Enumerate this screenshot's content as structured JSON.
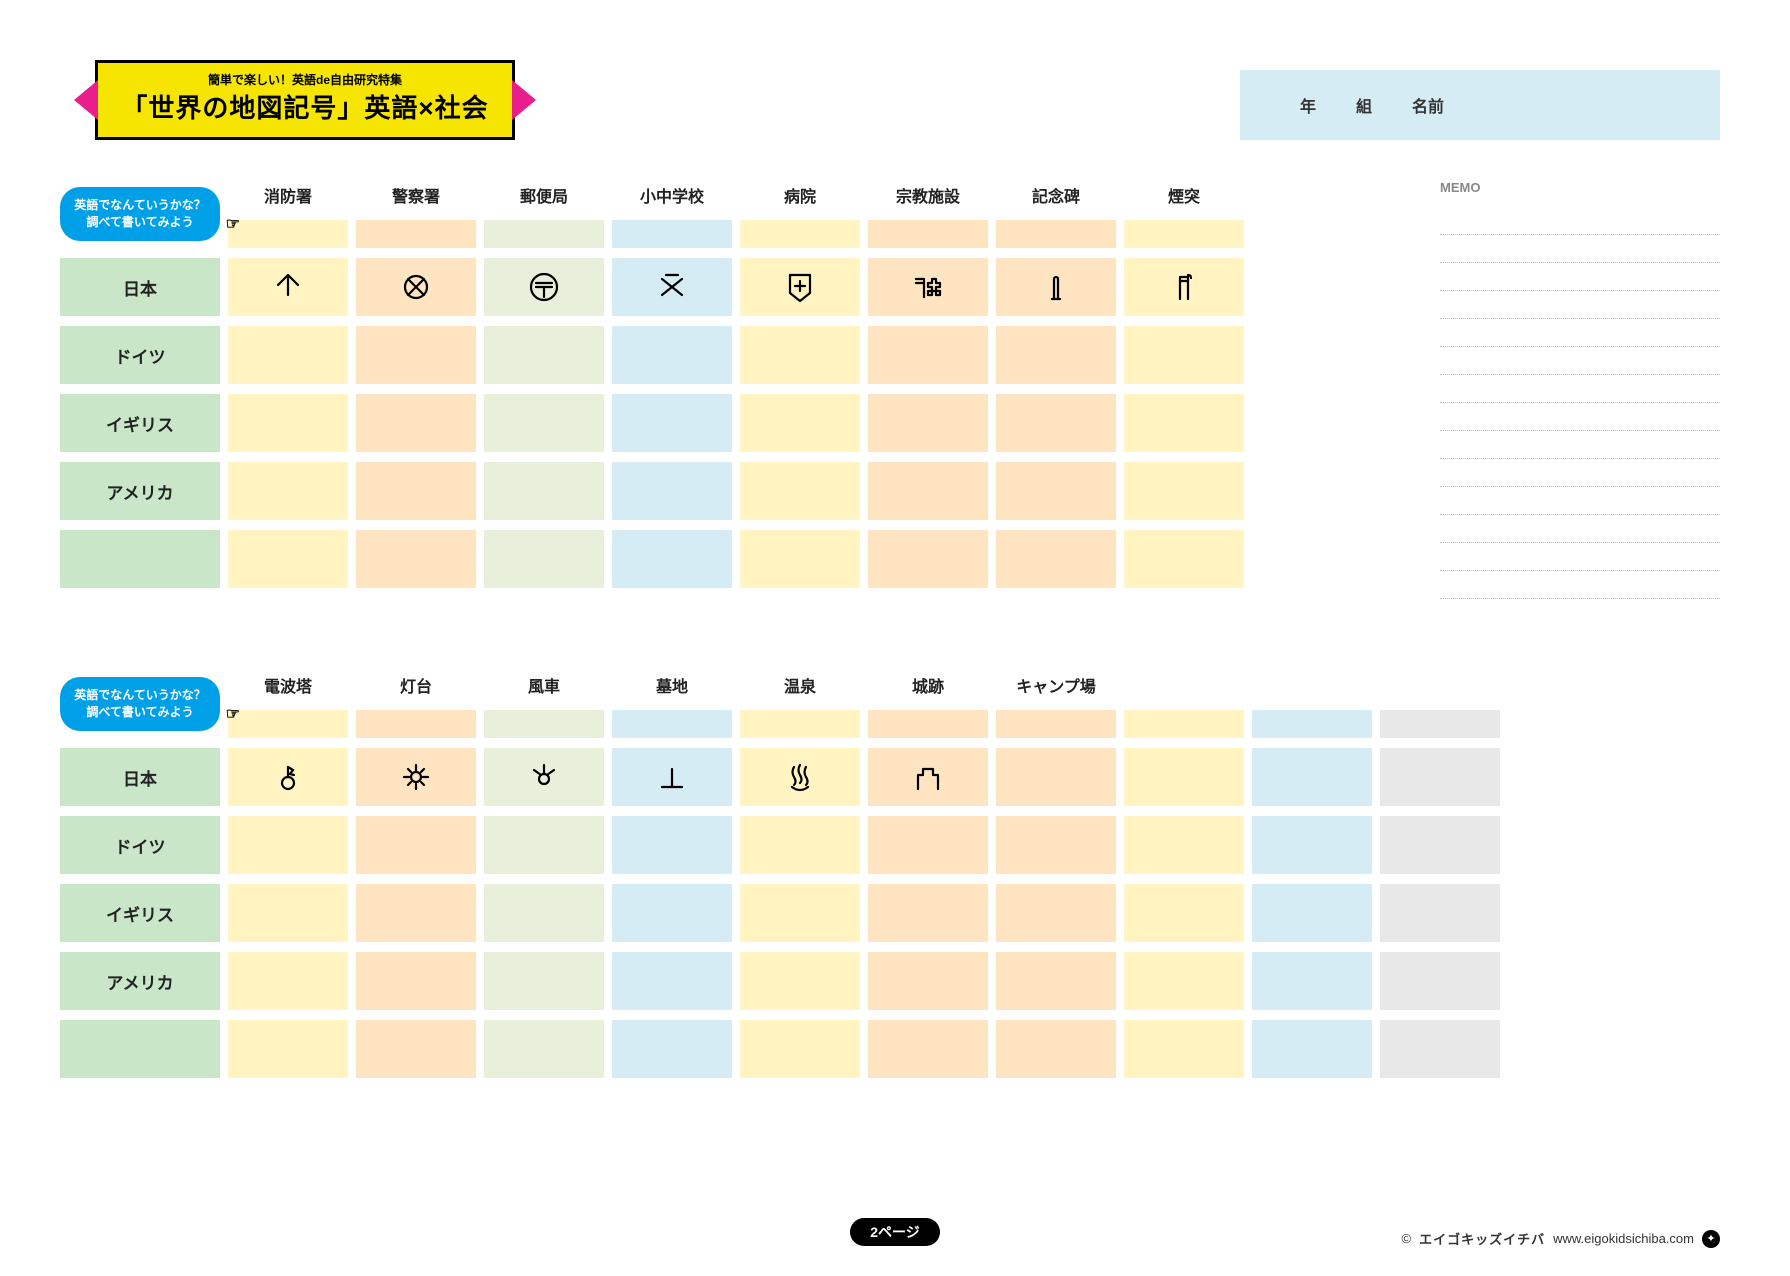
{
  "banner": {
    "subtitle": "簡単で楽しい！英語de自由研究特集",
    "title": "「世界の地図記号」英語×社会"
  },
  "name_box": {
    "year": "年",
    "class": "組",
    "name": "名前"
  },
  "cloud": {
    "line1": "英語でなんていうかな？",
    "line2": "調べて書いてみよう"
  },
  "memo_label": "MEMO",
  "memo_lines": 14,
  "table1": {
    "columns": [
      "消防署",
      "警察署",
      "郵便局",
      "小中学校",
      "病院",
      "宗教施設",
      "記念碑",
      "煙突"
    ],
    "row_labels": [
      "日本",
      "ドイツ",
      "イギリス",
      "アメリカ",
      ""
    ],
    "japan_symbols": [
      "fire",
      "police",
      "post",
      "school",
      "hospital",
      "religion",
      "monument",
      "chimney"
    ],
    "column_colors": {
      "rowlabel": "#c9e6c9",
      "cols": [
        "#fff4c2",
        "#ffe4c2",
        "#e8f0dc",
        "#d5ecf4",
        "#fff4c2",
        "#ffe4c2",
        "#ffe4c2",
        "#fff4c2"
      ]
    }
  },
  "table2": {
    "columns": [
      "電波塔",
      "灯台",
      "風車",
      "墓地",
      "温泉",
      "城跡",
      "キャンプ場",
      "",
      "",
      ""
    ],
    "row_labels": [
      "日本",
      "ドイツ",
      "イギリス",
      "アメリカ",
      ""
    ],
    "japan_symbols": [
      "radio",
      "lighthouse",
      "windmill",
      "grave",
      "onsen",
      "castle",
      "",
      "",
      "",
      ""
    ],
    "column_colors": {
      "rowlabel": "#c9e6c9",
      "cols": [
        "#fff4c2",
        "#ffe4c2",
        "#e8f0dc",
        "#d5ecf4",
        "#fff4c2",
        "#ffe4c2",
        "#ffe4c2",
        "#fff4c2",
        "#d5ecf4",
        "#e8e8e8"
      ]
    }
  },
  "page_label": "2ページ",
  "credit": {
    "c": "©",
    "brand": "エイゴキッズイチバ",
    "url": "www.eigokidsichiba.com"
  }
}
